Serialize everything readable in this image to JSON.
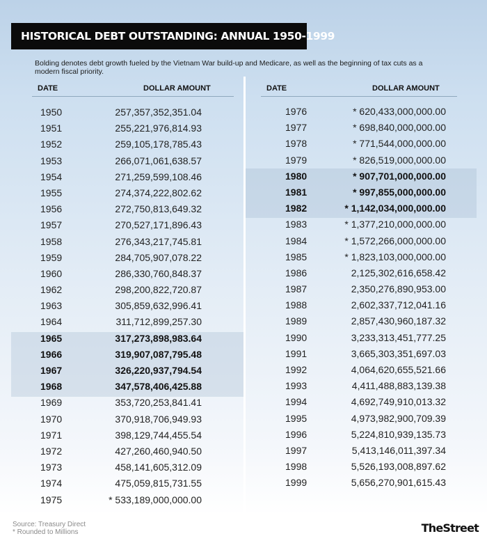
{
  "title": "HISTORICAL DEBT OUTSTANDING: ANNUAL 1950-1999",
  "subtitle": "Bolding denotes debt growth fueled by the Vietnam War build-up and Medicare, as well as the beginning of tax cuts as a modern fiscal priority.",
  "headers": {
    "date": "DATE",
    "amount": "DOLLAR AMOUNT"
  },
  "left_rows": [
    {
      "date": "1950",
      "amount": "257,357,352,351.04"
    },
    {
      "date": "1951",
      "amount": "255,221,976,814.93"
    },
    {
      "date": "1952",
      "amount": "259,105,178,785.43"
    },
    {
      "date": "1953",
      "amount": "266,071,061,638.57"
    },
    {
      "date": "1954",
      "amount": "271,259,599,108.46"
    },
    {
      "date": "1955",
      "amount": "274,374,222,802.62"
    },
    {
      "date": "1956",
      "amount": "272,750,813,649.32"
    },
    {
      "date": "1957",
      "amount": "270,527,171,896.43"
    },
    {
      "date": "1958",
      "amount": "276,343,217,745.81"
    },
    {
      "date": "1959",
      "amount": "284,705,907,078.22"
    },
    {
      "date": "1960",
      "amount": "286,330,760,848.37"
    },
    {
      "date": "1962",
      "amount": "298,200,822,720.87"
    },
    {
      "date": "1963",
      "amount": "305,859,632,996.41"
    },
    {
      "date": "1964",
      "amount": "311,712,899,257.30"
    },
    {
      "date": "1965",
      "amount": "317,273,898,983.64",
      "bold": true
    },
    {
      "date": "1966",
      "amount": "319,907,087,795.48",
      "bold": true
    },
    {
      "date": "1967",
      "amount": "326,220,937,794.54",
      "bold": true
    },
    {
      "date": "1968",
      "amount": "347,578,406,425.88",
      "bold": true
    },
    {
      "date": "1969",
      "amount": "353,720,253,841.41"
    },
    {
      "date": "1970",
      "amount": "370,918,706,949.93"
    },
    {
      "date": "1971",
      "amount": "398,129,744,455.54"
    },
    {
      "date": "1972",
      "amount": "427,260,460,940.50"
    },
    {
      "date": "1973",
      "amount": "458,141,605,312.09"
    },
    {
      "date": "1974",
      "amount": "475,059,815,731.55"
    },
    {
      "date": "1975",
      "amount": "* 533,189,000,000.00"
    }
  ],
  "right_rows": [
    {
      "date": "1976",
      "amount": "* 620,433,000,000.00"
    },
    {
      "date": "1977",
      "amount": "* 698,840,000,000.00"
    },
    {
      "date": "1978",
      "amount": "* 771,544,000,000.00"
    },
    {
      "date": "1979",
      "amount": "* 826,519,000,000.00"
    },
    {
      "date": "1980",
      "amount": "* 907,701,000,000.00",
      "bold": true
    },
    {
      "date": "1981",
      "amount": "* 997,855,000,000.00",
      "bold": true
    },
    {
      "date": "1982",
      "amount": "* 1,142,034,000,000.00",
      "bold": true
    },
    {
      "date": "1983",
      "amount": "* 1,377,210,000,000.00"
    },
    {
      "date": "1984",
      "amount": "* 1,572,266,000,000.00"
    },
    {
      "date": "1985",
      "amount": "* 1,823,103,000,000.00"
    },
    {
      "date": "1986",
      "amount": "2,125,302,616,658.42"
    },
    {
      "date": "1987",
      "amount": "2,350,276,890,953.00"
    },
    {
      "date": "1988",
      "amount": "2,602,337,712,041.16"
    },
    {
      "date": "1989",
      "amount": "2,857,430,960,187.32"
    },
    {
      "date": "1990",
      "amount": "3,233,313,451,777.25"
    },
    {
      "date": "1991",
      "amount": "3,665,303,351,697.03"
    },
    {
      "date": "1992",
      "amount": "4,064,620,655,521.66"
    },
    {
      "date": "1993",
      "amount": "4,411,488,883,139.38"
    },
    {
      "date": "1994",
      "amount": "4,692,749,910,013.32"
    },
    {
      "date": "1995",
      "amount": "4,973,982,900,709.39"
    },
    {
      "date": "1996",
      "amount": "5,224,810,939,135.73"
    },
    {
      "date": "1997",
      "amount": "5,413,146,011,397.34"
    },
    {
      "date": "1998",
      "amount": "5,526,193,008,897.62"
    },
    {
      "date": "1999",
      "amount": "5,656,270,901,615.43"
    }
  ],
  "footer": {
    "source": "Source: Treasury Direct",
    "note": "* Rounded to Millions"
  },
  "brand": "TheStreet",
  "colors": {
    "title_bg": "#0b0b0b",
    "highlight": "#a9bfd4",
    "bg_top": "#bcd2e8"
  }
}
